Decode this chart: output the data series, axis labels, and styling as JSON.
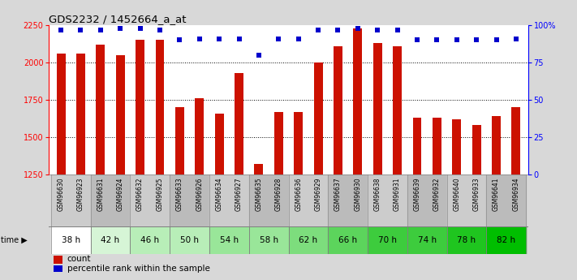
{
  "title": "GDS2232 / 1452664_a_at",
  "samples": [
    "GSM96630",
    "GSM96923",
    "GSM96631",
    "GSM96924",
    "GSM96632",
    "GSM96925",
    "GSM96633",
    "GSM96926",
    "GSM96634",
    "GSM96927",
    "GSM96635",
    "GSM96928",
    "GSM96636",
    "GSM96929",
    "GSM96637",
    "GSM96930",
    "GSM96638",
    "GSM96931",
    "GSM96639",
    "GSM96932",
    "GSM96640",
    "GSM96933",
    "GSM96641",
    "GSM96934"
  ],
  "counts": [
    2060,
    2060,
    2120,
    2050,
    2150,
    2150,
    1700,
    1760,
    1660,
    1930,
    1320,
    1670,
    1670,
    2000,
    2110,
    2230,
    2130,
    2110,
    1630,
    1630,
    1620,
    1580,
    1640,
    1700
  ],
  "percentile_ranks": [
    97,
    97,
    97,
    98,
    98,
    97,
    90,
    91,
    91,
    91,
    80,
    91,
    91,
    97,
    97,
    98,
    97,
    97,
    90,
    90,
    90,
    90,
    90,
    91
  ],
  "time_groups": [
    {
      "label": "38 h",
      "indices": [
        0,
        1
      ],
      "color": "#ffffff"
    },
    {
      "label": "42 h",
      "indices": [
        2,
        3
      ],
      "color": "#d6f5d6"
    },
    {
      "label": "46 h",
      "indices": [
        4,
        5
      ],
      "color": "#b8eeb8"
    },
    {
      "label": "50 h",
      "indices": [
        6,
        7
      ],
      "color": "#b8eeb8"
    },
    {
      "label": "54 h",
      "indices": [
        8,
        9
      ],
      "color": "#99e699"
    },
    {
      "label": "58 h",
      "indices": [
        10,
        11
      ],
      "color": "#99e699"
    },
    {
      "label": "62 h",
      "indices": [
        12,
        13
      ],
      "color": "#7ddd7d"
    },
    {
      "label": "66 h",
      "indices": [
        14,
        15
      ],
      "color": "#5cd45c"
    },
    {
      "label": "70 h",
      "indices": [
        16,
        17
      ],
      "color": "#3dcc3d"
    },
    {
      "label": "74 h",
      "indices": [
        18,
        19
      ],
      "color": "#3dcc3d"
    },
    {
      "label": "78 h",
      "indices": [
        20,
        21
      ],
      "color": "#1fc51f"
    },
    {
      "label": "82 h",
      "indices": [
        22,
        23
      ],
      "color": "#00be00"
    }
  ],
  "bar_color": "#cc1100",
  "dot_color": "#0000cc",
  "ylim_left": [
    1250,
    2250
  ],
  "ylim_right": [
    0,
    100
  ],
  "yticks_left": [
    1250,
    1500,
    1750,
    2000,
    2250
  ],
  "yticks_right": [
    0,
    25,
    50,
    75,
    100
  ],
  "yticklabels_right": [
    "0",
    "25",
    "50",
    "75",
    "100%"
  ],
  "grid_lines": [
    1500,
    1750,
    2000
  ],
  "background_color": "#d8d8d8",
  "plot_bg_color": "#ffffff",
  "sample_row_bg": "#cccccc"
}
